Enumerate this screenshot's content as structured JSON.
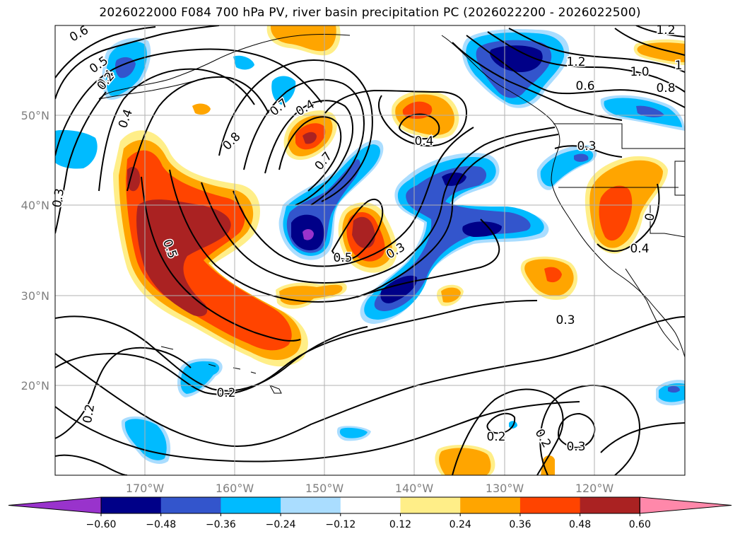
{
  "title": "2026022000 F084 700 hPa PV, river basin precipitation PC (2026022200 - 2026022500)",
  "map": {
    "lat_labels": [
      "50°N",
      "40°N",
      "30°N",
      "20°N"
    ],
    "lon_labels": [
      "170°W",
      "160°W",
      "150°W",
      "140°W",
      "130°W",
      "120°W"
    ],
    "grid_color": "#b0b0b0",
    "tick_label_color": "#808080"
  },
  "pv_contour_labels": [
    "0.6",
    "0.5",
    "0.4",
    "0.2",
    "0.4",
    "0.3",
    "0.5",
    "0.7",
    "0.4",
    "0.8",
    "0.7",
    "0.4",
    "0.5",
    "0.3",
    "0.2",
    "0.2",
    "0.3",
    "0.2",
    "0.2",
    "0.3",
    "0.4",
    "0.3",
    "1.2",
    "1.0",
    "0.8",
    "0.6",
    "1.2",
    "1",
    "0"
  ],
  "colorbar": {
    "ticks": [
      "−0.60",
      "−0.48",
      "−0.36",
      "−0.24",
      "−0.12",
      "0.12",
      "0.24",
      "0.36",
      "0.48",
      "0.60"
    ],
    "colors": [
      "#9933cc",
      "#000088",
      "#3355cc",
      "#00bbff",
      "#aaddff",
      "#ffffff",
      "#ffee88",
      "#ffa500",
      "#ff4400",
      "#aa2222",
      "#ff88aa"
    ]
  }
}
